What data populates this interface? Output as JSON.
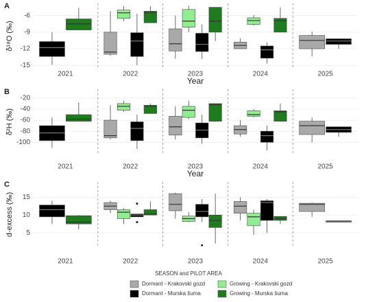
{
  "legend": {
    "title": "SEASON and PILOT AREA",
    "series": [
      {
        "name": "Dormant - Krakovski gozd",
        "color": "#a9a9a9"
      },
      {
        "name": "Growing - Krakovski gozd",
        "color": "#90ee90"
      },
      {
        "name": "Dormant - Murska šuma",
        "color": "#000000"
      },
      {
        "name": "Growing - Murska šuma",
        "color": "#1e7b1e"
      }
    ]
  },
  "chart_data": [
    {
      "type": "box",
      "panel": "A",
      "ylabel": "δ¹⁸O (‰)",
      "xlabel": "Year",
      "categories": [
        "2021",
        "2022",
        "2023",
        "2024",
        "2025"
      ],
      "ylim": [
        -15.6,
        -3.8
      ],
      "yticks": [
        -6,
        -9,
        -12,
        -15
      ],
      "grid": true,
      "series": [
        {
          "values": [
            null,
            {
              "low": -13.3,
              "q1": -13.0,
              "median": -12.6,
              "q3": -9.0,
              "high": -5.2,
              "outliers": []
            },
            {
              "low": -13.8,
              "q1": -12.4,
              "median": -11.1,
              "q3": -8.4,
              "high": -6.0,
              "outliers": []
            },
            {
              "low": -12.0,
              "q1": -12.0,
              "median": -11.4,
              "q3": -10.8,
              "high": -10.1,
              "outliers": []
            },
            {
              "low": -13.4,
              "q1": -12.0,
              "median": -10.5,
              "q3": -9.6,
              "high": -8.9,
              "outliers": []
            }
          ]
        },
        {
          "values": [
            null,
            {
              "low": -7.0,
              "q1": -6.5,
              "median": -5.5,
              "q3": -5.0,
              "high": -4.3,
              "outliers": []
            },
            {
              "low": -9.0,
              "q1": -8.1,
              "median": -7.0,
              "q3": -4.9,
              "high": -4.2,
              "outliers": []
            },
            {
              "low": -7.8,
              "q1": -7.6,
              "median": -6.9,
              "q3": -6.4,
              "high": -5.9,
              "outliers": []
            },
            null
          ]
        },
        {
          "values": [
            {
              "low": -14.9,
              "q1": -13.4,
              "median": -11.8,
              "q3": -10.7,
              "high": -9.0,
              "outliers": []
            },
            {
              "low": -15.0,
              "q1": -13.4,
              "median": -10.6,
              "q3": -9.1,
              "high": -5.7,
              "outliers": []
            },
            {
              "low": -13.9,
              "q1": -12.5,
              "median": -11.2,
              "q3": -9.2,
              "high": -7.6,
              "outliers": []
            },
            {
              "low": -14.7,
              "q1": -13.7,
              "median": -12.2,
              "q3": -11.5,
              "high": -10.9,
              "outliers": []
            },
            {
              "low": -12.0,
              "q1": -11.2,
              "median": -10.6,
              "q3": -10.2,
              "high": -10.2,
              "outliers": []
            }
          ]
        },
        {
          "values": [
            {
              "low": -8.6,
              "q1": -8.6,
              "median": -7.5,
              "q3": -6.6,
              "high": -4.6,
              "outliers": []
            },
            {
              "low": -7.3,
              "q1": -7.3,
              "median": -5.5,
              "q3": -5.2,
              "high": -4.3,
              "outliers": []
            },
            {
              "low": -10.6,
              "q1": -9.0,
              "median": -7.0,
              "q3": -4.5,
              "high": -4.5,
              "outliers": []
            },
            {
              "low": -9.0,
              "q1": -9.0,
              "median": -6.9,
              "q3": -6.5,
              "high": -4.5,
              "outliers": []
            },
            null
          ]
        }
      ]
    },
    {
      "type": "box",
      "panel": "B",
      "ylabel": "δ²H (‰)",
      "xlabel": "Year",
      "categories": [
        "2021",
        "2022",
        "2023",
        "2024",
        "2025"
      ],
      "ylim": [
        -122,
        -4
      ],
      "yticks": [
        -20,
        -40,
        -60,
        -80,
        -100
      ],
      "grid": true,
      "series": [
        {
          "values": [
            null,
            {
              "low": -95,
              "q1": -92,
              "median": -88,
              "q3": -60,
              "high": -33,
              "outliers": []
            },
            {
              "low": -95,
              "q1": -87,
              "median": -72,
              "q3": -53,
              "high": -35,
              "outliers": []
            },
            {
              "low": -90,
              "q1": -85,
              "median": -77,
              "q3": -70,
              "high": -60,
              "outliers": []
            },
            {
              "low": -100,
              "q1": -86,
              "median": -70,
              "q3": -62,
              "high": -55,
              "outliers": []
            }
          ]
        },
        {
          "values": [
            null,
            {
              "low": -45,
              "q1": -42,
              "median": -35,
              "q3": -30,
              "high": -25,
              "outliers": []
            },
            {
              "low": -58,
              "q1": -55,
              "median": -42,
              "q3": -35,
              "high": -25,
              "outliers": []
            },
            {
              "low": -55,
              "q1": -53,
              "median": -50,
              "q3": -43,
              "high": -40,
              "outliers": []
            },
            null
          ]
        },
        {
          "values": [
            {
              "low": -110,
              "q1": -97,
              "median": -83,
              "q3": -70,
              "high": -55,
              "outliers": []
            },
            {
              "low": -112,
              "q1": -97,
              "median": -75,
              "q3": -63,
              "high": -50,
              "outliers": []
            },
            {
              "low": -103,
              "q1": -92,
              "median": -78,
              "q3": -65,
              "high": -50,
              "outliers": []
            },
            {
              "low": -115,
              "q1": -100,
              "median": -88,
              "q3": -80,
              "high": -70,
              "outliers": []
            },
            {
              "low": -90,
              "q1": -82,
              "median": -77,
              "q3": -72,
              "high": -72,
              "outliers": []
            }
          ]
        },
        {
          "values": [
            {
              "low": -62,
              "q1": -62,
              "median": -58,
              "q3": -50,
              "high": -28,
              "outliers": []
            },
            {
              "low": -48,
              "q1": -48,
              "median": -35,
              "q3": -33,
              "high": -30,
              "outliers": []
            },
            {
              "low": -63,
              "q1": -62,
              "median": -32,
              "q3": -30,
              "high": -30,
              "outliers": []
            },
            {
              "low": -62,
              "q1": -62,
              "median": -45,
              "q3": -43,
              "high": -30,
              "outliers": []
            },
            null
          ]
        }
      ]
    },
    {
      "type": "box",
      "panel": "C",
      "ylabel": "d-excess (‰)",
      "categories": [
        "2021",
        "2022",
        "2023",
        "2024",
        "2025"
      ],
      "ylim": [
        1,
        19.3
      ],
      "yticks": [
        5,
        10,
        15
      ],
      "grid": true,
      "series": [
        {
          "values": [
            null,
            {
              "low": 10.5,
              "q1": 11.5,
              "median": 12.5,
              "q3": 13.5,
              "high": 14,
              "outliers": []
            },
            {
              "low": 9,
              "q1": 11.2,
              "median": 13,
              "q3": 16,
              "high": 16.3,
              "outliers": []
            },
            {
              "low": 8.5,
              "q1": 10.5,
              "median": 12.5,
              "q3": 13.8,
              "high": 15,
              "outliers": []
            },
            {
              "low": 9.5,
              "q1": 11,
              "median": 13,
              "q3": 13.3,
              "high": 13.5,
              "outliers": []
            }
          ]
        },
        {
          "values": [
            null,
            {
              "low": 7.5,
              "q1": 9,
              "median": 10.8,
              "q3": 11.5,
              "high": 12,
              "outliers": []
            },
            {
              "low": 8,
              "q1": 8.2,
              "median": 9,
              "q3": 9.7,
              "high": 10.8,
              "outliers": []
            },
            {
              "low": 4.5,
              "q1": 7,
              "median": 9.5,
              "q3": 10.5,
              "high": 11.5,
              "outliers": []
            },
            null
          ]
        },
        {
          "values": [
            {
              "low": 7.5,
              "q1": 9.5,
              "median": 11.5,
              "q3": 12.8,
              "high": 14,
              "outliers": []
            },
            {
              "low": 9.5,
              "q1": 9.5,
              "median": 10,
              "q3": 10.3,
              "high": 10.3,
              "outliers": [
                13.2,
                8
              ]
            },
            {
              "low": 8,
              "q1": 9.5,
              "median": 11,
              "q3": 13,
              "high": 14.5,
              "outliers": [
                1.5
              ]
            },
            {
              "low": 5,
              "q1": 8.5,
              "median": 13.5,
              "q3": 14,
              "high": 14.5,
              "outliers": []
            },
            {
              "low": 8,
              "q1": 8,
              "median": 8.2,
              "q3": 8.4,
              "high": 8.4,
              "outliers": []
            }
          ]
        },
        {
          "values": [
            {
              "low": 6,
              "q1": 7.5,
              "median": 8,
              "q3": 9.8,
              "high": 10,
              "outliers": []
            },
            {
              "low": 10,
              "q1": 10,
              "median": 10.3,
              "q3": 11.5,
              "high": 13.8,
              "outliers": []
            },
            {
              "low": 2,
              "q1": 6.5,
              "median": 8.5,
              "q3": 10,
              "high": 16,
              "outliers": []
            },
            {
              "low": 7.5,
              "q1": 8.5,
              "median": 9,
              "q3": 9.6,
              "high": 9.7,
              "outliers": []
            },
            null
          ]
        }
      ]
    }
  ]
}
